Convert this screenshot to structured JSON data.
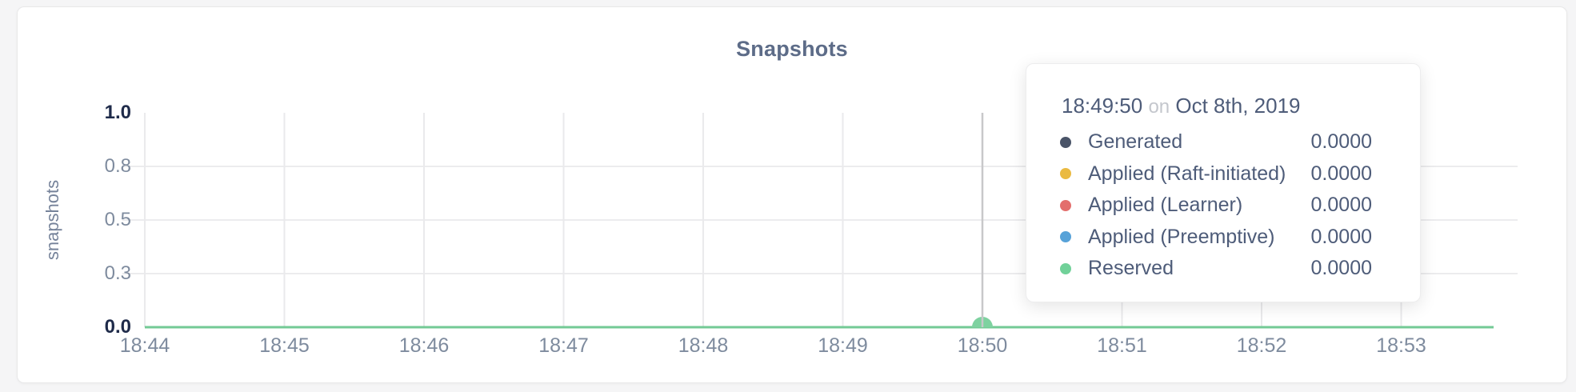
{
  "colors": {
    "page_bg": "#f5f5f6",
    "card_bg": "#ffffff",
    "card_border": "#e8e8e9",
    "title_text": "#5d6c88",
    "tick_dark": "#1f2b4a",
    "tick_light": "#7e8b9e",
    "axis_word": "#76839a",
    "gridline": "#ececee",
    "crosshair": "#c8c8ca",
    "line_green": "#73ca95",
    "dot_green": "#7ed2a0",
    "tooltip_text": "#4e5c79",
    "tooltip_muted": "#c4c7cd"
  },
  "chart_data": {
    "type": "line",
    "title": "Snapshots",
    "xlabel": "",
    "ylabel": "snapshots",
    "ylim": [
      0.0,
      1.0
    ],
    "grid": true,
    "x_ticks": [
      "18:44",
      "18:45",
      "18:46",
      "18:47",
      "18:48",
      "18:49",
      "18:50",
      "18:51",
      "18:52",
      "18:53"
    ],
    "y_ticks": [
      {
        "label": "0.0",
        "value": 0.0,
        "strong": true
      },
      {
        "label": "0.3",
        "value": 0.25,
        "strong": false
      },
      {
        "label": "0.5",
        "value": 0.5,
        "strong": false
      },
      {
        "label": "0.8",
        "value": 0.75,
        "strong": false
      },
      {
        "label": "1.0",
        "value": 1.0,
        "strong": true
      }
    ],
    "series": [
      {
        "name": "Generated",
        "color": "#4a5468",
        "values": [
          0,
          0,
          0,
          0,
          0,
          0,
          0,
          0,
          0,
          0
        ]
      },
      {
        "name": "Applied (Raft-initiated)",
        "color": "#eaba41",
        "values": [
          0,
          0,
          0,
          0,
          0,
          0,
          0,
          0,
          0,
          0
        ]
      },
      {
        "name": "Applied (Learner)",
        "color": "#e36e6c",
        "values": [
          0,
          0,
          0,
          0,
          0,
          0,
          0,
          0,
          0,
          0
        ]
      },
      {
        "name": "Applied (Preemptive)",
        "color": "#57a2d8",
        "values": [
          0,
          0,
          0,
          0,
          0,
          0,
          0,
          0,
          0,
          0
        ]
      },
      {
        "name": "Reserved",
        "color": "#71d199",
        "values": [
          0,
          0,
          0,
          0,
          0,
          0,
          0,
          0,
          0,
          0
        ]
      }
    ],
    "hover_point": {
      "time": "18:49:50",
      "x_tick": "18:50",
      "value": 0.0,
      "series_highlight": "Reserved"
    },
    "legend_position": "tooltip-only"
  },
  "tooltip": {
    "time": "18:49:50",
    "conjunction": "on",
    "date": "Oct 8th, 2019",
    "rows": [
      {
        "label": "Generated",
        "value": "0.0000",
        "color": "#4a5468"
      },
      {
        "label": "Applied (Raft-initiated)",
        "value": "0.0000",
        "color": "#eaba41"
      },
      {
        "label": "Applied (Learner)",
        "value": "0.0000",
        "color": "#e36e6c"
      },
      {
        "label": "Applied (Preemptive)",
        "value": "0.0000",
        "color": "#57a2d8"
      },
      {
        "label": "Reserved",
        "value": "0.0000",
        "color": "#71d199"
      }
    ]
  }
}
